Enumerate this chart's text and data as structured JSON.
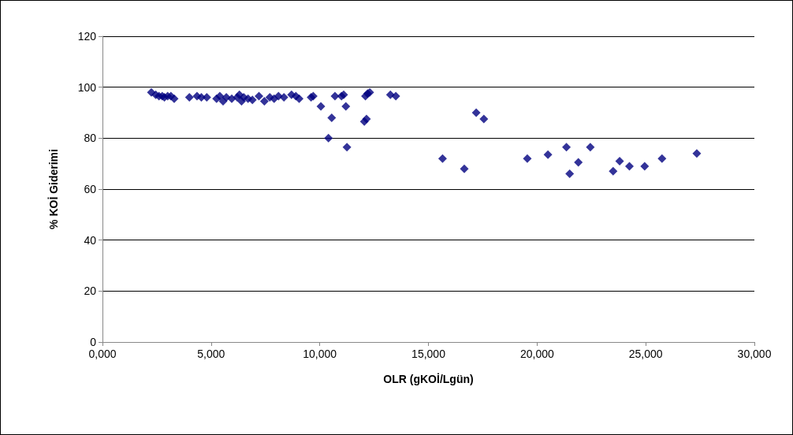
{
  "chart_data": {
    "type": "scatter",
    "xlabel": "OLR (gKOİ/Lgün)",
    "ylabel": "% KOİ Giderimi",
    "x": [
      2250,
      2450,
      2600,
      2750,
      2850,
      3000,
      3150,
      3300,
      4000,
      4350,
      4550,
      4800,
      5250,
      5400,
      5550,
      5700,
      5950,
      6200,
      6300,
      6400,
      6500,
      6700,
      6900,
      7200,
      7450,
      7700,
      7900,
      8100,
      8350,
      8700,
      8900,
      9050,
      9600,
      9700,
      10050,
      10400,
      10550,
      10700,
      11000,
      11100,
      11200,
      11250,
      12050,
      12100,
      12150,
      12200,
      12300,
      13250,
      13500,
      15650,
      16650,
      17200,
      17550,
      19550,
      20500,
      21350,
      21500,
      21900,
      22450,
      23500,
      23800,
      24250,
      24950,
      25750,
      27350
    ],
    "series": [
      {
        "color": "#000080",
        "values": [
          98,
          97,
          96.5,
          96.5,
          96,
          96.5,
          96.5,
          95.5,
          96,
          96.5,
          96,
          96,
          95.5,
          96.5,
          94.5,
          96,
          95.5,
          96,
          97,
          94.5,
          96,
          95.5,
          95,
          96.5,
          94.5,
          96,
          95.5,
          96.5,
          96,
          97,
          96.5,
          95.5,
          96,
          96.5,
          92.5,
          80,
          88,
          96.5,
          96.5,
          97,
          92.5,
          76.5,
          86.5,
          96.5,
          87.5,
          97.5,
          98,
          97,
          96.5,
          72,
          68,
          90,
          87.5,
          72,
          73.5,
          76.5,
          66,
          70.5,
          76.5,
          67,
          71,
          69,
          69,
          72,
          74
        ]
      }
    ],
    "xlim": [
      0,
      30000
    ],
    "xticks": [
      {
        "value": 0,
        "label": "0,000"
      },
      {
        "value": 5000,
        "label": "5,000"
      },
      {
        "value": 10000,
        "label": "10,000"
      },
      {
        "value": 15000,
        "label": "15,000"
      },
      {
        "value": 20000,
        "label": "20,000"
      },
      {
        "value": 25000,
        "label": "25,000"
      },
      {
        "value": 30000,
        "label": "30,000"
      }
    ],
    "ylim": [
      0,
      120
    ],
    "yticks": [
      0,
      20,
      40,
      60,
      80,
      100,
      120
    ],
    "grid": "y",
    "marker": "diamond"
  }
}
